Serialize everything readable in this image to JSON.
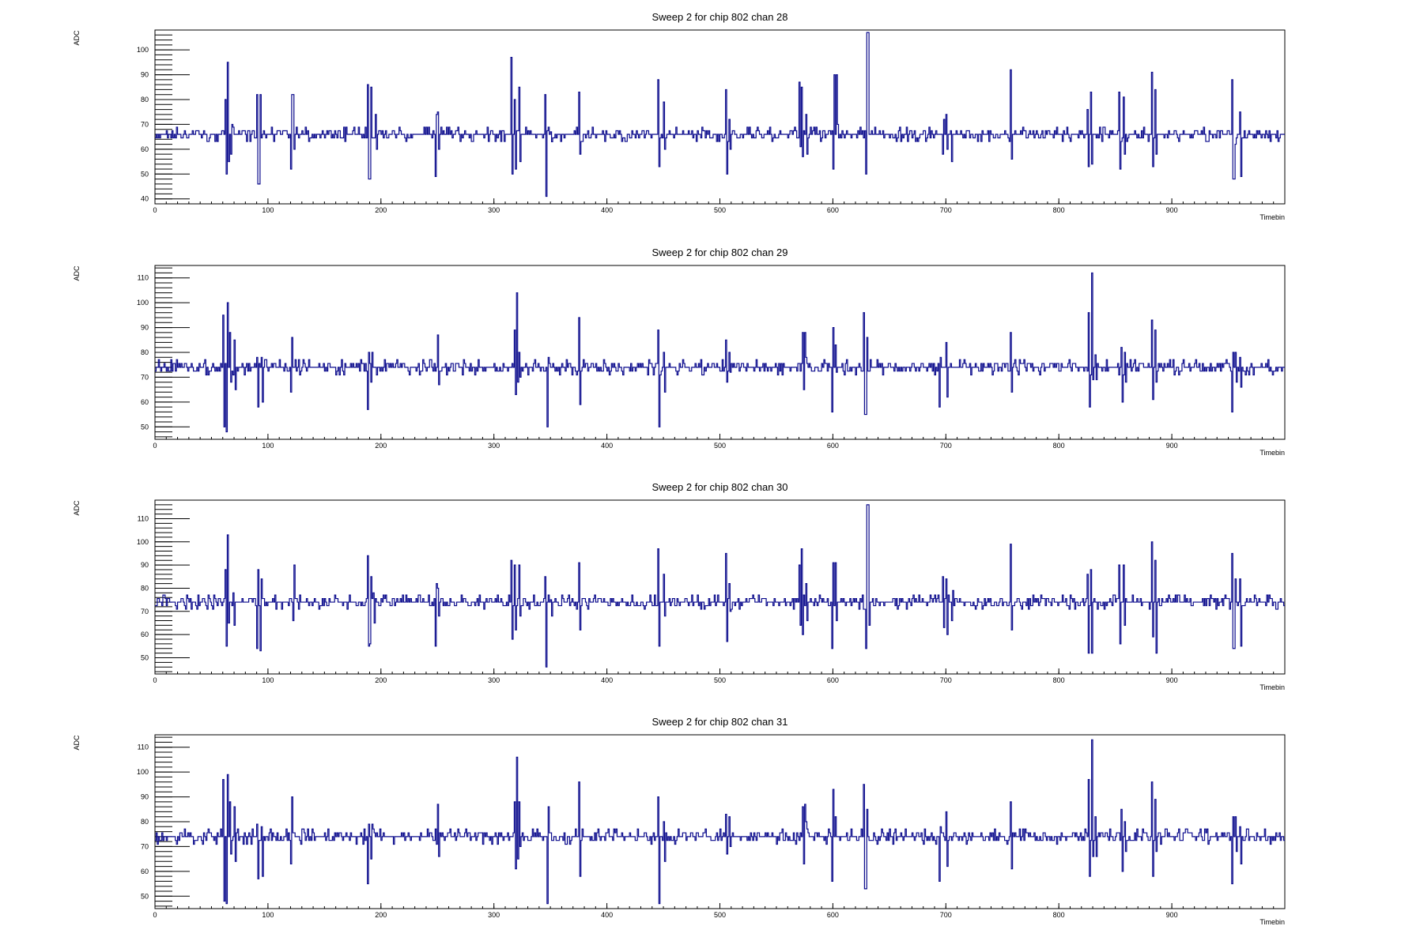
{
  "colors": {
    "trace": "#0a0a8c",
    "axis": "#000000",
    "background": "#ffffff"
  },
  "chart_data": [
    {
      "type": "line",
      "title": "Sweep 2 for chip 802 chan 28",
      "xlabel": "Timebin",
      "ylabel": "ADC",
      "xlim": [
        0,
        1000
      ],
      "ylim": [
        38,
        108
      ],
      "xticks": [
        0,
        100,
        200,
        300,
        400,
        500,
        600,
        700,
        800,
        900
      ],
      "yticks": [
        40,
        50,
        60,
        70,
        80,
        90,
        100
      ],
      "baseline": 66,
      "noise": 1.6,
      "spikes": [
        [
          62,
          80,
          50
        ],
        [
          64,
          95,
          55
        ],
        [
          67,
          58,
          70
        ],
        [
          90,
          82,
          46
        ],
        [
          92,
          46,
          82
        ],
        [
          120,
          52,
          82
        ],
        [
          122,
          82,
          60
        ],
        [
          188,
          86,
          48
        ],
        [
          190,
          48,
          85
        ],
        [
          195,
          74,
          60
        ],
        [
          248,
          49,
          74
        ],
        [
          250,
          75,
          60
        ],
        [
          315,
          97,
          50
        ],
        [
          318,
          80,
          52
        ],
        [
          322,
          85,
          55
        ],
        [
          345,
          82,
          41
        ],
        [
          350,
          67,
          63
        ],
        [
          375,
          83,
          58
        ],
        [
          445,
          88,
          53
        ],
        [
          450,
          79,
          60
        ],
        [
          505,
          84,
          50
        ],
        [
          508,
          72,
          60
        ],
        [
          570,
          87,
          61
        ],
        [
          572,
          85,
          57
        ],
        [
          576,
          74,
          58
        ],
        [
          600,
          52,
          90
        ],
        [
          603,
          90,
          70
        ],
        [
          629,
          50,
          107
        ],
        [
          631,
          107,
          66
        ],
        [
          697,
          58,
          72
        ],
        [
          700,
          74,
          60
        ],
        [
          705,
          55,
          66
        ],
        [
          757,
          92,
          56
        ],
        [
          825,
          76,
          53
        ],
        [
          828,
          83,
          54
        ],
        [
          853,
          83,
          52
        ],
        [
          857,
          81,
          58
        ],
        [
          882,
          91,
          53
        ],
        [
          885,
          84,
          58
        ],
        [
          953,
          88,
          48
        ],
        [
          955,
          48,
          62
        ],
        [
          960,
          75,
          49
        ]
      ]
    },
    {
      "type": "line",
      "title": "Sweep 2 for chip 802 chan 29",
      "xlabel": "Timebin",
      "ylabel": "ADC",
      "xlim": [
        0,
        1000
      ],
      "ylim": [
        45,
        115
      ],
      "xticks": [
        0,
        100,
        200,
        300,
        400,
        500,
        600,
        700,
        800,
        900
      ],
      "yticks": [
        50,
        60,
        70,
        80,
        90,
        100,
        110
      ],
      "baseline": 74,
      "noise": 1.7,
      "spikes": [
        [
          60,
          95,
          50
        ],
        [
          63,
          48,
          100
        ],
        [
          66,
          88,
          68
        ],
        [
          70,
          85,
          65
        ],
        [
          90,
          78,
          58
        ],
        [
          94,
          78,
          60
        ],
        [
          120,
          64,
          86
        ],
        [
          188,
          57,
          80
        ],
        [
          191,
          68,
          80
        ],
        [
          250,
          87,
          67
        ],
        [
          318,
          89,
          63
        ],
        [
          320,
          104,
          68
        ],
        [
          322,
          80,
          70
        ],
        [
          347,
          50,
          78
        ],
        [
          375,
          94,
          59
        ],
        [
          445,
          89,
          50
        ],
        [
          450,
          80,
          64
        ],
        [
          505,
          85,
          68
        ],
        [
          508,
          80,
          72
        ],
        [
          573,
          88,
          65
        ],
        [
          575,
          88,
          78
        ],
        [
          599,
          56,
          90
        ],
        [
          602,
          83,
          72
        ],
        [
          627,
          96,
          55
        ],
        [
          629,
          55,
          86
        ],
        [
          694,
          58,
          78
        ],
        [
          700,
          84,
          62
        ],
        [
          757,
          88,
          64
        ],
        [
          826,
          96,
          58
        ],
        [
          829,
          112,
          69
        ],
        [
          832,
          79,
          69
        ],
        [
          855,
          82,
          60
        ],
        [
          858,
          80,
          68
        ],
        [
          882,
          93,
          61
        ],
        [
          885,
          89,
          68
        ],
        [
          953,
          56,
          80
        ],
        [
          956,
          80,
          68
        ],
        [
          960,
          78,
          66
        ]
      ]
    },
    {
      "type": "line",
      "title": "Sweep 2 for chip 802 chan 30",
      "xlabel": "Timebin",
      "ylabel": "ADC",
      "xlim": [
        0,
        1000
      ],
      "ylim": [
        43,
        118
      ],
      "xticks": [
        0,
        100,
        200,
        300,
        400,
        500,
        600,
        700,
        800,
        900
      ],
      "yticks": [
        50,
        60,
        70,
        80,
        90,
        100,
        110
      ],
      "baseline": 74,
      "noise": 1.7,
      "spikes": [
        [
          62,
          88,
          55
        ],
        [
          64,
          103,
          65
        ],
        [
          69,
          78,
          64
        ],
        [
          90,
          54,
          88
        ],
        [
          93,
          53,
          84
        ],
        [
          122,
          66,
          90
        ],
        [
          188,
          94,
          55
        ],
        [
          190,
          56,
          85
        ],
        [
          193,
          78,
          65
        ],
        [
          248,
          55,
          82
        ],
        [
          250,
          80,
          68
        ],
        [
          315,
          92,
          58
        ],
        [
          318,
          90,
          62
        ],
        [
          322,
          90,
          68
        ],
        [
          345,
          85,
          46
        ],
        [
          350,
          75,
          68
        ],
        [
          375,
          91,
          62
        ],
        [
          445,
          97,
          55
        ],
        [
          450,
          86,
          68
        ],
        [
          505,
          95,
          57
        ],
        [
          508,
          82,
          70
        ],
        [
          570,
          90,
          64
        ],
        [
          572,
          97,
          60
        ],
        [
          576,
          82,
          66
        ],
        [
          599,
          54,
          91
        ],
        [
          602,
          91,
          66
        ],
        [
          629,
          54,
          116
        ],
        [
          631,
          116,
          64
        ],
        [
          697,
          85,
          63
        ],
        [
          700,
          84,
          60
        ],
        [
          705,
          66,
          79
        ],
        [
          757,
          99,
          62
        ],
        [
          825,
          86,
          52
        ],
        [
          828,
          88,
          52
        ],
        [
          853,
          90,
          56
        ],
        [
          857,
          90,
          64
        ],
        [
          882,
          100,
          59
        ],
        [
          885,
          92,
          52
        ],
        [
          953,
          95,
          54
        ],
        [
          955,
          54,
          84
        ],
        [
          960,
          84,
          55
        ]
      ]
    },
    {
      "type": "line",
      "title": "Sweep 2 for chip 802 chan 31",
      "xlabel": "Timebin",
      "ylabel": "ADC",
      "xlim": [
        0,
        1000
      ],
      "ylim": [
        45,
        115
      ],
      "xticks": [
        0,
        100,
        200,
        300,
        400,
        500,
        600,
        700,
        800,
        900
      ],
      "yticks": [
        50,
        60,
        70,
        80,
        90,
        100,
        110
      ],
      "baseline": 74,
      "noise": 1.7,
      "spikes": [
        [
          60,
          97,
          48
        ],
        [
          63,
          47,
          99
        ],
        [
          66,
          88,
          67
        ],
        [
          70,
          86,
          64
        ],
        [
          90,
          79,
          57
        ],
        [
          94,
          78,
          58
        ],
        [
          120,
          63,
          90
        ],
        [
          188,
          55,
          79
        ],
        [
          191,
          65,
          79
        ],
        [
          250,
          87,
          66
        ],
        [
          318,
          88,
          61
        ],
        [
          320,
          106,
          65
        ],
        [
          322,
          88,
          70
        ],
        [
          347,
          47,
          86
        ],
        [
          375,
          96,
          58
        ],
        [
          445,
          90,
          47
        ],
        [
          450,
          80,
          64
        ],
        [
          505,
          83,
          67
        ],
        [
          508,
          82,
          70
        ],
        [
          573,
          86,
          63
        ],
        [
          575,
          87,
          80
        ],
        [
          599,
          56,
          93
        ],
        [
          602,
          82,
          74
        ],
        [
          627,
          95,
          53
        ],
        [
          629,
          53,
          85
        ],
        [
          694,
          56,
          78
        ],
        [
          700,
          84,
          62
        ],
        [
          757,
          88,
          61
        ],
        [
          826,
          97,
          58
        ],
        [
          829,
          113,
          66
        ],
        [
          832,
          82,
          66
        ],
        [
          855,
          85,
          60
        ],
        [
          858,
          80,
          68
        ],
        [
          882,
          96,
          58
        ],
        [
          885,
          89,
          68
        ],
        [
          953,
          55,
          82
        ],
        [
          956,
          82,
          68
        ],
        [
          960,
          78,
          63
        ]
      ]
    }
  ]
}
